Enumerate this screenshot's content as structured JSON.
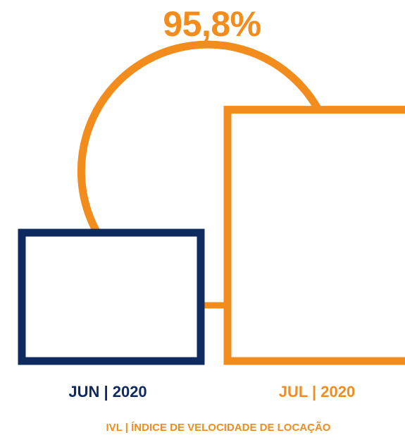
{
  "chart_data": {
    "type": "bar",
    "categories": [
      "JUN | 2020",
      "JUL | 2020"
    ],
    "values": [
      100,
      195.8
    ],
    "change_label": "95,8%",
    "caption": "IVL | ÍNDICE DE VELOCIDADE DE LOCAÇÃO",
    "colors": {
      "jun": "#0f2a5f",
      "jul": "#f28c1c",
      "caption": "#f28c1c",
      "change_label": "#f28c1c"
    }
  }
}
